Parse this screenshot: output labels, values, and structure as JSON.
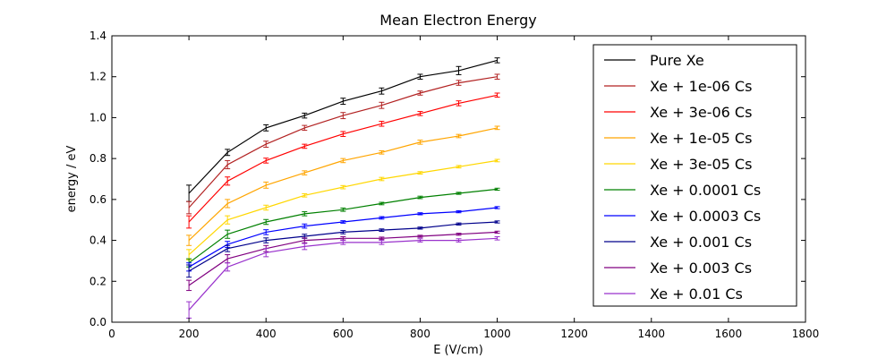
{
  "chart_data": {
    "type": "line",
    "title": "Mean Electron Energy",
    "xlabel": "E (V/cm)",
    "ylabel": "energy / eV",
    "xlim": [
      0,
      1800
    ],
    "ylim": [
      0,
      1.4
    ],
    "xticks": [
      0,
      200,
      400,
      600,
      800,
      1000,
      1200,
      1400,
      1600,
      1800
    ],
    "yticks": [
      0.0,
      0.2,
      0.4,
      0.6,
      0.8,
      1.0,
      1.2,
      1.4
    ],
    "xtick_labels": [
      "0",
      "200",
      "400",
      "600",
      "800",
      "1000",
      "1200",
      "1400",
      "1600",
      "1800"
    ],
    "ytick_labels": [
      "0.0",
      "0.2",
      "0.4",
      "0.6",
      "0.8",
      "1.0",
      "1.2",
      "1.4"
    ],
    "grid": false,
    "legend_position": "top-right",
    "x": [
      200,
      300,
      400,
      500,
      600,
      700,
      800,
      900,
      1000
    ],
    "series": [
      {
        "name": "Pure Xe",
        "color": "#000000",
        "values": [
          0.63,
          0.83,
          0.95,
          1.01,
          1.08,
          1.13,
          1.2,
          1.23,
          1.28
        ],
        "errors": [
          0.04,
          0.015,
          0.015,
          0.012,
          0.015,
          0.015,
          0.012,
          0.02,
          0.012
        ]
      },
      {
        "name": "Xe + 1e-06 Cs",
        "color": "#b22222",
        "values": [
          0.56,
          0.77,
          0.87,
          0.95,
          1.01,
          1.06,
          1.12,
          1.17,
          1.2
        ],
        "errors": [
          0.03,
          0.02,
          0.015,
          0.012,
          0.015,
          0.015,
          0.01,
          0.012,
          0.012
        ]
      },
      {
        "name": "Xe + 3e-06 Cs",
        "color": "#ff0000",
        "values": [
          0.49,
          0.69,
          0.79,
          0.86,
          0.92,
          0.97,
          1.02,
          1.07,
          1.11
        ],
        "errors": [
          0.03,
          0.02,
          0.012,
          0.01,
          0.012,
          0.012,
          0.01,
          0.012,
          0.01
        ]
      },
      {
        "name": "Xe + 1e-05 Cs",
        "color": "#ffa500",
        "values": [
          0.4,
          0.58,
          0.67,
          0.73,
          0.79,
          0.83,
          0.88,
          0.91,
          0.95
        ],
        "errors": [
          0.025,
          0.02,
          0.015,
          0.01,
          0.01,
          0.008,
          0.01,
          0.008,
          0.008
        ]
      },
      {
        "name": "Xe + 3e-05 Cs",
        "color": "#ffd700",
        "values": [
          0.33,
          0.5,
          0.56,
          0.62,
          0.66,
          0.7,
          0.73,
          0.76,
          0.79
        ],
        "errors": [
          0.025,
          0.02,
          0.012,
          0.008,
          0.008,
          0.008,
          0.006,
          0.006,
          0.006
        ]
      },
      {
        "name": "Xe + 0.0001 Cs",
        "color": "#008000",
        "values": [
          0.29,
          0.43,
          0.49,
          0.53,
          0.55,
          0.58,
          0.61,
          0.63,
          0.65
        ],
        "errors": [
          0.02,
          0.02,
          0.012,
          0.01,
          0.008,
          0.006,
          0.006,
          0.005,
          0.005
        ]
      },
      {
        "name": "Xe + 0.0003 Cs",
        "color": "#0000ff",
        "values": [
          0.27,
          0.38,
          0.44,
          0.47,
          0.49,
          0.51,
          0.53,
          0.54,
          0.56
        ],
        "errors": [
          0.02,
          0.015,
          0.012,
          0.01,
          0.006,
          0.006,
          0.005,
          0.005,
          0.005
        ]
      },
      {
        "name": "Xe + 0.001 Cs",
        "color": "#00008b",
        "values": [
          0.25,
          0.36,
          0.4,
          0.42,
          0.44,
          0.45,
          0.46,
          0.48,
          0.49
        ],
        "errors": [
          0.03,
          0.015,
          0.012,
          0.01,
          0.008,
          0.006,
          0.005,
          0.005,
          0.005
        ]
      },
      {
        "name": "Xe + 0.003 Cs",
        "color": "#800080",
        "values": [
          0.18,
          0.31,
          0.36,
          0.4,
          0.41,
          0.41,
          0.42,
          0.43,
          0.44
        ],
        "errors": [
          0.025,
          0.02,
          0.015,
          0.012,
          0.008,
          0.006,
          0.005,
          0.005,
          0.005
        ]
      },
      {
        "name": "Xe + 0.01 Cs",
        "color": "#9932cc",
        "values": [
          0.06,
          0.27,
          0.34,
          0.37,
          0.39,
          0.39,
          0.4,
          0.4,
          0.41
        ],
        "errors": [
          0.04,
          0.02,
          0.02,
          0.015,
          0.01,
          0.01,
          0.008,
          0.008,
          0.008
        ]
      }
    ]
  }
}
